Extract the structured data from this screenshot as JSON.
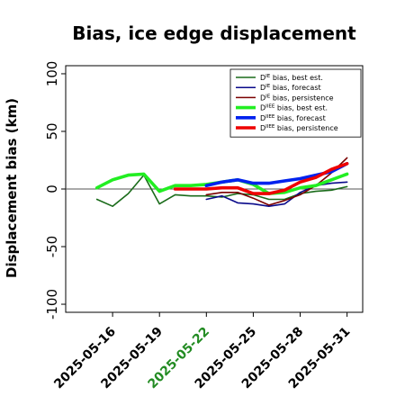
{
  "chart_data": {
    "type": "line",
    "title": "Bias, ice edge displacement",
    "xlabel": "",
    "ylabel": "Displacement bias (km)",
    "ylim": [
      -107,
      107
    ],
    "xlim": [
      "2025-05-13",
      "2025-06-01"
    ],
    "x_ticks": [
      "2025-05-16",
      "2025-05-19",
      "2025-05-22",
      "2025-05-25",
      "2025-05-28",
      "2025-05-31"
    ],
    "x_tick_highlight": "2025-05-22",
    "y_ticks": [
      100,
      50,
      0,
      -50,
      -100
    ],
    "zero_line": true,
    "grid": false,
    "legend_position": "top-right",
    "colors": {
      "dark_green": "#1a6b1a",
      "navy": "#0a0a8a",
      "dark_red": "#7a0000",
      "lime": "#22ee22",
      "blue": "#0022ee",
      "red": "#ee0000",
      "highlight_tick": "#228b22"
    },
    "series": [
      {
        "name": "D^IE bias, best est.",
        "legend_prefix": "D",
        "legend_sup": "IE",
        "legend_suffix": " bias, best est.",
        "color": "#1a6b1a",
        "width": 1.6,
        "x": [
          "2025-05-15",
          "2025-05-16",
          "2025-05-17",
          "2025-05-18",
          "2025-05-19",
          "2025-05-20",
          "2025-05-21",
          "2025-05-22",
          "2025-05-23",
          "2025-05-24",
          "2025-05-25",
          "2025-05-26",
          "2025-05-27",
          "2025-05-28",
          "2025-05-29",
          "2025-05-30",
          "2025-05-31"
        ],
        "y": [
          -9,
          -15,
          -4,
          12,
          -13,
          -5,
          -6,
          -6,
          -7,
          -4,
          -5,
          -9,
          -9,
          -4,
          -2,
          -1,
          2
        ]
      },
      {
        "name": "D^IE bias, forecast",
        "legend_prefix": "D",
        "legend_sup": "IE",
        "legend_suffix": " bias, forecast",
        "color": "#0a0a8a",
        "width": 1.6,
        "x": [
          "2025-05-22",
          "2025-05-23",
          "2025-05-24",
          "2025-05-25",
          "2025-05-26",
          "2025-05-27",
          "2025-05-28",
          "2025-05-29",
          "2025-05-30",
          "2025-05-31"
        ],
        "y": [
          -9,
          -6,
          -12,
          -13,
          -15,
          -13,
          -3,
          3,
          5,
          6
        ]
      },
      {
        "name": "D^IE bias, persistence",
        "legend_prefix": "D",
        "legend_sup": "IE",
        "legend_suffix": " bias, persistence",
        "color": "#7a0000",
        "width": 1.6,
        "x": [
          "2025-05-22",
          "2025-05-23",
          "2025-05-24",
          "2025-05-25",
          "2025-05-26",
          "2025-05-27",
          "2025-05-28",
          "2025-05-29",
          "2025-05-30",
          "2025-05-31"
        ],
        "y": [
          -5,
          -3,
          -3,
          -8,
          -14,
          -10,
          -5,
          3,
          14,
          27
        ]
      },
      {
        "name": "D^IIEE bias, best est.",
        "legend_prefix": "D",
        "legend_sup": "IIEE",
        "legend_suffix": " bias, best est.",
        "color": "#22ee22",
        "width": 3.6,
        "x": [
          "2025-05-15",
          "2025-05-16",
          "2025-05-17",
          "2025-05-18",
          "2025-05-19",
          "2025-05-20",
          "2025-05-21",
          "2025-05-22",
          "2025-05-23",
          "2025-05-24",
          "2025-05-25",
          "2025-05-26",
          "2025-05-27",
          "2025-05-28",
          "2025-05-29",
          "2025-05-30",
          "2025-05-31"
        ],
        "y": [
          1,
          8,
          12,
          13,
          -2,
          3,
          3,
          4,
          6,
          8,
          4,
          -4,
          -3,
          1,
          3,
          8,
          13
        ]
      },
      {
        "name": "D^IIEE bias, forecast",
        "legend_prefix": "D",
        "legend_sup": "IIEE",
        "legend_suffix": " bias, forecast",
        "color": "#0022ee",
        "width": 3.6,
        "x": [
          "2025-05-22",
          "2025-05-23",
          "2025-05-24",
          "2025-05-25",
          "2025-05-26",
          "2025-05-27",
          "2025-05-28",
          "2025-05-29",
          "2025-05-30",
          "2025-05-31"
        ],
        "y": [
          3,
          6,
          8,
          5,
          5,
          7,
          9,
          12,
          15,
          22
        ]
      },
      {
        "name": "D^IIEE bias, persistence",
        "legend_prefix": "D",
        "legend_sup": "IIEE",
        "legend_suffix": " bias, persistence",
        "color": "#ee0000",
        "width": 3.6,
        "x": [
          "2025-05-20",
          "2025-05-21",
          "2025-05-22",
          "2025-05-23",
          "2025-05-24",
          "2025-05-25",
          "2025-05-26",
          "2025-05-27",
          "2025-05-28",
          "2025-05-29",
          "2025-05-30",
          "2025-05-31"
        ],
        "y": [
          0,
          0,
          0,
          1,
          1,
          -4,
          -4,
          -1,
          6,
          10,
          17,
          22
        ]
      }
    ]
  }
}
